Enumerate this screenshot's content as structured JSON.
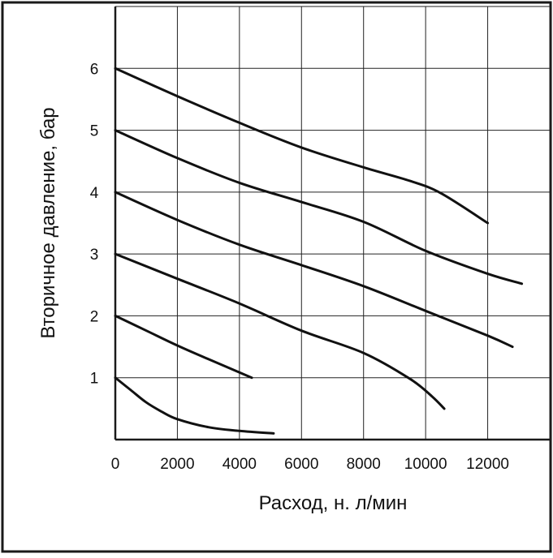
{
  "chart_data": {
    "type": "line",
    "xlabel": "Расход, н. л/мин",
    "ylabel": "Вторичное давление, бар",
    "xlim": [
      0,
      14000
    ],
    "ylim": [
      0,
      7
    ],
    "x_ticks": [
      0,
      2000,
      4000,
      6000,
      8000,
      10000,
      12000
    ],
    "y_ticks": [
      1,
      2,
      3,
      4,
      5,
      6
    ],
    "x_tick_labels": [
      "0",
      "2000",
      "4000",
      "6000",
      "8000",
      "10000",
      "12000"
    ],
    "y_tick_labels": [
      "1",
      "2",
      "3",
      "4",
      "5",
      "6"
    ],
    "grid": true,
    "series": [
      {
        "x": [
          0,
          500,
          1000,
          1500,
          2000,
          3000,
          4000,
          5100
        ],
        "y": [
          1.0,
          0.8,
          0.6,
          0.45,
          0.33,
          0.2,
          0.14,
          0.1
        ]
      },
      {
        "x": [
          0,
          1000,
          2000,
          3000,
          4400
        ],
        "y": [
          2.0,
          1.76,
          1.52,
          1.3,
          1.0
        ]
      },
      {
        "x": [
          0,
          2000,
          4000,
          6000,
          8000,
          9500,
          10200,
          10600
        ],
        "y": [
          3.0,
          2.6,
          2.2,
          1.76,
          1.4,
          0.98,
          0.7,
          0.5
        ]
      },
      {
        "x": [
          0,
          2000,
          4000,
          6000,
          8000,
          10000,
          12000,
          12800
        ],
        "y": [
          4.0,
          3.55,
          3.15,
          2.82,
          2.48,
          2.08,
          1.68,
          1.5
        ]
      },
      {
        "x": [
          0,
          2000,
          4000,
          6000,
          8000,
          10000,
          12000,
          13100
        ],
        "y": [
          5.0,
          4.55,
          4.15,
          3.84,
          3.52,
          3.05,
          2.68,
          2.52
        ]
      },
      {
        "x": [
          0,
          2000,
          4000,
          6000,
          8000,
          9500,
          10500,
          12000
        ],
        "y": [
          6.0,
          5.55,
          5.12,
          4.72,
          4.4,
          4.18,
          3.98,
          3.5
        ]
      }
    ]
  },
  "style": {
    "line_color": "#111111",
    "grid_color": "#222222",
    "frame_color": "#1a1a1a",
    "background": "#ffffff"
  }
}
